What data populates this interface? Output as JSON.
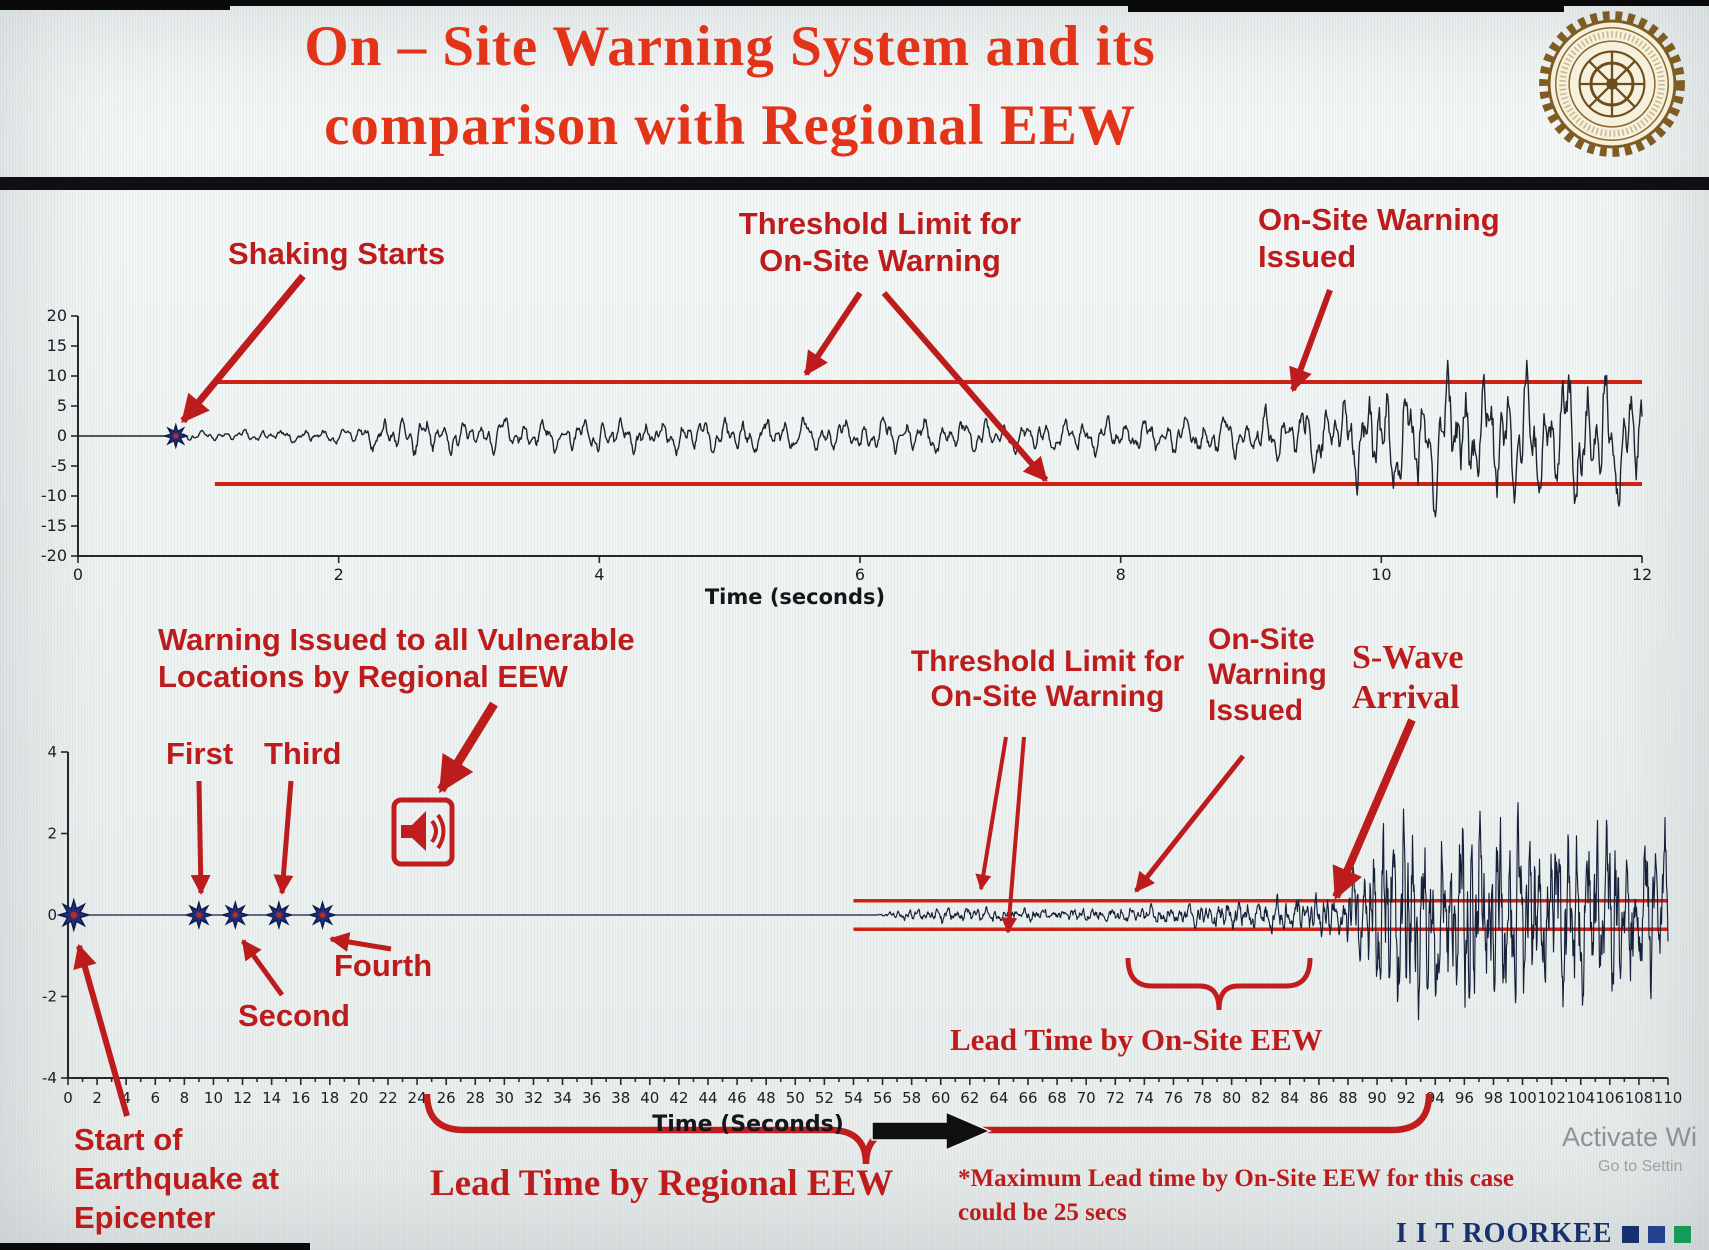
{
  "slide": {
    "title_line1": "On – Site Warning System and its",
    "title_line2": "comparison with Regional EEW"
  },
  "footer": {
    "brand": "I I T ROORKEE",
    "watermark_line1": "Activate Wi",
    "watermark_line2": "Go to Settin"
  },
  "colors": {
    "title_red": "#e23418",
    "annotation_red": "#bd1c1c",
    "threshold_red": "#cf2217",
    "waveform_navy": "#1a2438",
    "marker_navy": "#20307d",
    "brand_navy": "#18306e",
    "brand_green": "#159a58"
  },
  "chart_data": [
    {
      "id": "onsite-warning-record",
      "type": "line",
      "xlabel": "Time (seconds)",
      "ylabel": "",
      "xlim": [
        0,
        12
      ],
      "xticks": [
        0,
        2,
        4,
        6,
        8,
        10,
        12
      ],
      "ylim": [
        -20,
        20
      ],
      "yticks": [
        20,
        15,
        10,
        5,
        0,
        -5,
        -10,
        -15,
        -20
      ],
      "grid": false,
      "legend": "none",
      "threshold_upper": 9,
      "threshold_lower": -8,
      "threshold_x_start": 1.05,
      "marker_times": [
        0.75
      ],
      "p_onset_time": 0.75,
      "onsite_warning_time": 9.3,
      "envelope": [
        [
          0,
          0
        ],
        [
          0.72,
          0
        ],
        [
          0.78,
          0.7
        ],
        [
          1.3,
          1.0
        ],
        [
          2.0,
          1.3
        ],
        [
          2.45,
          3.6
        ],
        [
          2.8,
          3.2
        ],
        [
          3.4,
          2.6
        ],
        [
          4.2,
          3.0
        ],
        [
          5.0,
          3.3
        ],
        [
          5.8,
          2.8
        ],
        [
          6.6,
          3.2
        ],
        [
          7.4,
          2.9
        ],
        [
          8.2,
          3.1
        ],
        [
          8.9,
          3.6
        ],
        [
          9.35,
          5.5
        ],
        [
          9.8,
          8.5
        ],
        [
          10.3,
          11.5
        ],
        [
          10.8,
          12.5
        ],
        [
          11.2,
          11.0
        ],
        [
          11.6,
          12.5
        ],
        [
          12,
          11.5
        ]
      ],
      "annotations": {
        "shaking_starts": "Shaking Starts",
        "threshold": [
          "Threshold Limit for",
          "On-Site Warning"
        ],
        "issued": [
          "On-Site Warning",
          "Issued"
        ]
      }
    },
    {
      "id": "regional-eew-comparison",
      "type": "line",
      "xlabel": "Time (Seconds)",
      "ylabel": "",
      "xlim": [
        0,
        110
      ],
      "xticks": [
        0,
        2,
        4,
        6,
        8,
        10,
        12,
        14,
        16,
        18,
        20,
        22,
        24,
        26,
        28,
        30,
        32,
        34,
        36,
        38,
        40,
        42,
        44,
        46,
        48,
        50,
        52,
        54,
        56,
        58,
        60,
        62,
        64,
        66,
        68,
        70,
        72,
        74,
        76,
        78,
        80,
        82,
        84,
        86,
        88,
        90,
        92,
        94,
        96,
        98,
        100,
        102,
        104,
        106,
        108,
        110
      ],
      "ylim": [
        -4,
        4
      ],
      "yticks": [
        4,
        2,
        0,
        -2,
        -4
      ],
      "grid": false,
      "legend": "none",
      "threshold_upper": 0.35,
      "threshold_lower": -0.35,
      "threshold_x_start": 54,
      "marker_times": [
        0.4,
        9,
        11.5,
        14.5,
        17.5
      ],
      "regional_warning_time": 24,
      "onsite_warning_time": 80,
      "s_wave_arrival_time": 87,
      "max_onsite_lead_secs": 25,
      "envelope": [
        [
          0,
          0
        ],
        [
          55.5,
          0
        ],
        [
          57,
          0.1
        ],
        [
          60,
          0.16
        ],
        [
          66,
          0.13
        ],
        [
          72,
          0.16
        ],
        [
          77,
          0.2
        ],
        [
          81,
          0.3
        ],
        [
          85,
          0.38
        ],
        [
          87.5,
          0.55
        ],
        [
          89.5,
          1.5
        ],
        [
          91.5,
          2.3
        ],
        [
          94,
          1.9
        ],
        [
          96.5,
          2.4
        ],
        [
          99,
          2.1
        ],
        [
          101.5,
          2.3
        ],
        [
          104,
          1.9
        ],
        [
          106.5,
          2.1
        ],
        [
          110,
          1.9
        ]
      ],
      "annotations": {
        "regional_warning": [
          "Warning Issued to all Vulnerable",
          "Locations by Regional EEW"
        ],
        "p_labels": [
          "First",
          "Second",
          "Third",
          "Fourth"
        ],
        "threshold": [
          "Threshold Limit for",
          "On-Site Warning"
        ],
        "issued": [
          "On-Site",
          "Warning",
          "Issued"
        ],
        "s_wave": [
          "S-Wave",
          "Arrival"
        ],
        "lead_onsite": "Lead Time by On-Site EEW",
        "epicenter": [
          "Start of",
          "Earthquake at",
          "Epicenter"
        ],
        "lead_regional": "Lead Time by Regional EEW",
        "note": [
          "*Maximum Lead time by On-Site EEW for this case",
          "could be 25 secs"
        ]
      }
    }
  ]
}
